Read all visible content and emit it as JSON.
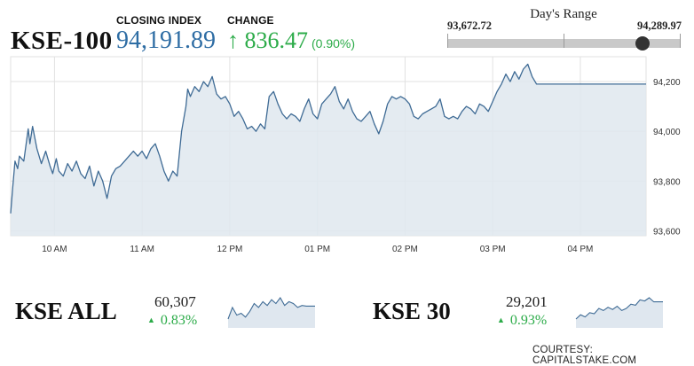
{
  "header": {
    "ticker": "KSE-100",
    "closing_label": "CLOSING INDEX",
    "closing_value": "94,191.89",
    "change_label": "CHANGE",
    "change_arrow": "↑",
    "change_value": "836.47",
    "change_pct": "(0.90%)"
  },
  "days_range": {
    "title": "Day's Range",
    "low_label": "93,672.72",
    "high_label": "94,289.97",
    "low": 93672.72,
    "high": 94289.97,
    "current": 94191.89
  },
  "colors": {
    "line": "#3f6b95",
    "fill": "#dfe7ef",
    "up": "#2bab48",
    "accent": "#2e6da4"
  },
  "chart_data": [
    {
      "type": "area",
      "grid": true,
      "y_axis_position": "right",
      "ylim": [
        93580,
        94300
      ],
      "xlim": [
        9.5,
        16.75
      ],
      "x_ticks": [
        10,
        11,
        12,
        13,
        14,
        15,
        16
      ],
      "x_tick_labels": [
        "10 AM",
        "11 AM",
        "12 PM",
        "01 PM",
        "02 PM",
        "03 PM",
        "04 PM"
      ],
      "y_ticks": [
        93600,
        93800,
        94000,
        94200
      ],
      "y_tick_labels": [
        "93,600",
        "93,800",
        "94,000",
        "94,200"
      ],
      "series": [
        {
          "x": [
            9.5,
            9.52,
            9.55,
            9.58,
            9.6,
            9.65,
            9.7,
            9.72,
            9.75,
            9.8,
            9.85,
            9.9,
            9.95,
            9.98,
            10.02,
            10.05,
            10.1,
            10.15,
            10.2,
            10.25,
            10.3,
            10.35,
            10.4,
            10.45,
            10.5,
            10.55,
            10.6,
            10.65,
            10.7,
            10.75,
            10.8,
            10.85,
            10.9,
            10.95,
            11.0,
            11.05,
            11.1,
            11.15,
            11.2,
            11.25,
            11.3,
            11.35,
            11.4,
            11.45,
            11.5,
            11.52,
            11.55,
            11.6,
            11.65,
            11.7,
            11.75,
            11.8,
            11.85,
            11.9,
            11.95,
            12.0,
            12.05,
            12.1,
            12.15,
            12.2,
            12.25,
            12.3,
            12.35,
            12.4,
            12.45,
            12.5,
            12.55,
            12.6,
            12.65,
            12.7,
            12.75,
            12.8,
            12.85,
            12.9,
            12.95,
            13.0,
            13.05,
            13.1,
            13.15,
            13.2,
            13.25,
            13.3,
            13.35,
            13.4,
            13.45,
            13.5,
            13.55,
            13.6,
            13.65,
            13.7,
            13.75,
            13.8,
            13.85,
            13.9,
            13.95,
            14.0,
            14.05,
            14.1,
            14.15,
            14.2,
            14.25,
            14.3,
            14.35,
            14.4,
            14.45,
            14.5,
            14.55,
            14.6,
            14.65,
            14.7,
            14.75,
            14.8,
            14.85,
            14.9,
            14.95,
            15.0,
            15.05,
            15.1,
            15.15,
            15.2,
            15.25,
            15.3,
            15.35,
            15.4,
            15.45,
            15.5,
            16.75
          ],
          "y": [
            93670,
            93760,
            93880,
            93850,
            93900,
            93880,
            94010,
            93950,
            94020,
            93930,
            93870,
            93920,
            93860,
            93830,
            93890,
            93840,
            93820,
            93870,
            93840,
            93880,
            93830,
            93810,
            93860,
            93780,
            93840,
            93800,
            93730,
            93820,
            93850,
            93860,
            93880,
            93900,
            93920,
            93900,
            93920,
            93890,
            93930,
            93950,
            93900,
            93840,
            93800,
            93840,
            93820,
            94000,
            94100,
            94170,
            94140,
            94180,
            94160,
            94200,
            94180,
            94220,
            94150,
            94130,
            94140,
            94110,
            94060,
            94080,
            94050,
            94010,
            94020,
            94000,
            94030,
            94010,
            94140,
            94160,
            94110,
            94070,
            94050,
            94070,
            94060,
            94040,
            94090,
            94130,
            94070,
            94050,
            94110,
            94130,
            94150,
            94180,
            94120,
            94090,
            94130,
            94080,
            94050,
            94040,
            94060,
            94080,
            94030,
            93990,
            94040,
            94110,
            94140,
            94130,
            94140,
            94130,
            94110,
            94060,
            94050,
            94070,
            94080,
            94090,
            94100,
            94130,
            94060,
            94050,
            94060,
            94050,
            94080,
            94100,
            94090,
            94070,
            94110,
            94100,
            94080,
            94120,
            94160,
            94190,
            94230,
            94200,
            94240,
            94210,
            94250,
            94270,
            94220,
            94190,
            94190
          ]
        }
      ]
    },
    {
      "type": "area",
      "title": "KSE ALL",
      "value": "60,307",
      "change": "0.83%",
      "series": [
        {
          "y": [
            60240,
            60300,
            60260,
            60270,
            60250,
            60280,
            60320,
            60300,
            60330,
            60310,
            60340,
            60320,
            60350,
            60310,
            60330,
            60320,
            60300,
            60310,
            60307,
            60307,
            60307
          ]
        }
      ]
    },
    {
      "type": "area",
      "title": "KSE 30",
      "value": "29,201",
      "change": "0.93%",
      "series": [
        {
          "y": [
            29120,
            29140,
            29130,
            29150,
            29145,
            29170,
            29160,
            29175,
            29165,
            29180,
            29160,
            29170,
            29190,
            29185,
            29210,
            29205,
            29220,
            29201,
            29201,
            29201
          ]
        }
      ]
    }
  ],
  "sub_indices": {
    "arrow": "▲",
    "kse_all": {
      "name": "KSE ALL",
      "value": "60,307",
      "change": "0.83%"
    },
    "kse_30": {
      "name": "KSE 30",
      "value": "29,201",
      "change": "0.93%"
    }
  },
  "credit": "COURTESY: CAPITALSTAKE.COM"
}
